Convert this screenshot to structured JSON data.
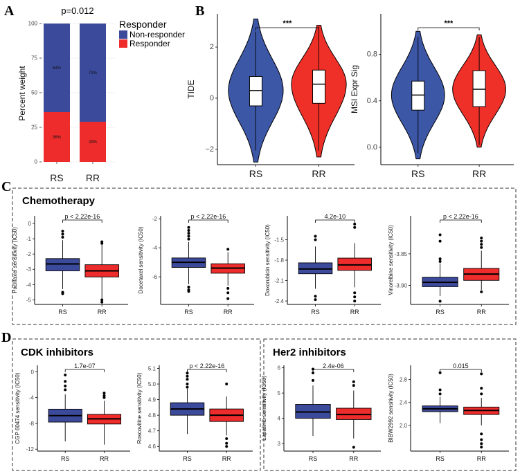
{
  "colors": {
    "blue": "#3c4a9c",
    "red": "#ee2c2c",
    "violin_blue": "#3d57a7",
    "violin_red": "#ee3028"
  },
  "panel_A": {
    "letter": "A",
    "pvalue": "p=0.012",
    "ylabel": "Percent weight",
    "legend": {
      "title": "Responder",
      "items": [
        "Non-responder",
        "Responder"
      ]
    },
    "chart_data": {
      "type": "bar",
      "stacked": true,
      "title": "p=0.012",
      "xlabel": "",
      "ylabel": "Percent weight",
      "categories": [
        "RS",
        "RR"
      ],
      "series": [
        {
          "name": "Non-responder",
          "values": [
            64,
            71
          ],
          "labels": [
            "64%",
            "71%"
          ]
        },
        {
          "name": "Responder",
          "values": [
            36,
            29
          ],
          "labels": [
            "36%",
            "29%"
          ]
        }
      ],
      "ylim": [
        0,
        100
      ],
      "yticks": [
        "0",
        "25",
        "50",
        "75",
        "100"
      ]
    }
  },
  "panel_B": {
    "letter": "B",
    "charts": [
      {
        "type": "violin",
        "ylabel": "TIDE",
        "categories": [
          "RS",
          "RR"
        ],
        "annotation": "***",
        "ylim": [
          -2.6,
          3.3
        ],
        "yticks": [
          2,
          0,
          -2
        ],
        "yticklabels": [
          "2",
          "0",
          "−2"
        ],
        "box": [
          {
            "q1": -0.3,
            "median": 0.3,
            "q3": 0.85,
            "whisker_low": -2.05,
            "whisker_high": 2.6
          },
          {
            "q1": -0.2,
            "median": 0.55,
            "q3": 1.1,
            "whisker_low": -2.05,
            "whisker_high": 2.8
          }
        ],
        "violin_range": [
          [
            -2.5,
            3.1
          ],
          [
            -2.3,
            2.85
          ]
        ]
      },
      {
        "type": "violin",
        "ylabel": "MSI Expr Sig",
        "categories": [
          "RS",
          "RR"
        ],
        "annotation": "***",
        "ylim": [
          -0.15,
          1.15
        ],
        "yticks": [
          0.8,
          0.4,
          0.0
        ],
        "yticklabels": [
          "0.8",
          "0.4",
          "0.0"
        ],
        "box": [
          {
            "q1": 0.32,
            "median": 0.45,
            "q3": 0.57,
            "whisker_low": -0.05,
            "whisker_high": 0.95
          },
          {
            "q1": 0.35,
            "median": 0.5,
            "q3": 0.66,
            "whisker_low": 0.02,
            "whisker_high": 0.95
          }
        ],
        "violin_range": [
          [
            -0.1,
            1.0
          ],
          [
            0.0,
            0.97
          ]
        ]
      }
    ]
  },
  "panel_C": {
    "letter": "C",
    "title": "Chemotherapy",
    "charts": [
      {
        "type": "box",
        "ylabel": "Paclitaxel sensitivity (IC50)",
        "categories": [
          "RS",
          "RR"
        ],
        "annotation": "p < 2.22e-16",
        "ylim": [
          -5.3,
          0.5
        ],
        "yticks": [
          0,
          -1,
          -2,
          -3,
          -4,
          -5
        ],
        "yticklabels": [
          "0",
          "-1",
          "-2",
          "-3",
          "-4",
          "-5"
        ],
        "box": [
          {
            "q1": -3.1,
            "median": -2.65,
            "q3": -2.3,
            "whisker_low": -4.3,
            "whisker_high": -1.1
          },
          {
            "q1": -3.5,
            "median": -3.1,
            "q3": -2.7,
            "whisker_low": -4.9,
            "whisker_high": -1.4
          }
        ],
        "outliers": [
          [
            -0.5,
            -0.7,
            -0.9,
            -4.5,
            -4.6
          ],
          [
            -1.2,
            -1.3,
            -5.0,
            -5.15
          ]
        ]
      },
      {
        "type": "box",
        "ylabel": "Docetaxel sensitivity (IC50)",
        "categories": [
          "RS",
          "RR"
        ],
        "annotation": "p < 2.22e-16",
        "ylim": [
          -7.9,
          -1.8
        ],
        "yticks": [
          -2,
          -4,
          -6
        ],
        "yticklabels": [
          "-2",
          "-4",
          "-6"
        ],
        "box": [
          {
            "q1": -5.35,
            "median": -5.0,
            "q3": -4.7,
            "whisker_low": -6.5,
            "whisker_high": -3.6
          },
          {
            "q1": -5.75,
            "median": -5.4,
            "q3": -5.1,
            "whisker_low": -6.6,
            "whisker_high": -4.3
          }
        ],
        "outliers": [
          [
            -2.6,
            -2.8,
            -3.0,
            -3.2,
            -3.4,
            -6.7,
            -6.9,
            -7.0
          ],
          [
            -4.1,
            -6.8,
            -7.1,
            -7.5
          ]
        ]
      },
      {
        "type": "box",
        "ylabel": "Doxorubicin sensitivity (IC50)",
        "categories": [
          "RS",
          "RR"
        ],
        "annotation": "4.2e-10",
        "ylim": [
          -2.45,
          -1.15
        ],
        "yticks": [
          -1.5,
          -1.8,
          -2.1,
          -2.4
        ],
        "yticklabels": [
          "-1.5",
          "-1.8",
          "-2.1",
          "-2.4"
        ],
        "box": [
          {
            "q1": -2.0,
            "median": -1.93,
            "q3": -1.84,
            "whisker_low": -2.22,
            "whisker_high": -1.6
          },
          {
            "q1": -1.95,
            "median": -1.87,
            "q3": -1.77,
            "whisker_low": -2.2,
            "whisker_high": -1.55
          }
        ],
        "outliers": [
          [
            -1.45,
            -1.5,
            -2.33,
            -2.38
          ],
          [
            -1.27,
            -1.32,
            -2.28,
            -2.34,
            -2.4
          ]
        ]
      },
      {
        "type": "box",
        "ylabel": "Vinorelbine sensitivity (IC50)",
        "categories": [
          "RS",
          "RR"
        ],
        "annotation": "p < 2.22e-16",
        "ylim": [
          -3.93,
          -3.79
        ],
        "yticks": [
          -3.85,
          -3.9
        ],
        "yticklabels": [
          "-3.85",
          "-3.90"
        ],
        "box": [
          {
            "q1": -3.902,
            "median": -3.895,
            "q3": -3.887,
            "whisker_low": -3.917,
            "whisker_high": -3.865
          },
          {
            "q1": -3.892,
            "median": -3.882,
            "q3": -3.873,
            "whisker_low": -3.907,
            "whisker_high": -3.845
          }
        ],
        "outliers": [
          [
            -3.82,
            -3.83,
            -3.858,
            -3.862,
            -3.925
          ],
          [
            -3.825,
            -3.83,
            -3.835,
            -3.84,
            -3.91
          ]
        ]
      }
    ]
  },
  "panel_D": {
    "letter": "D",
    "group_titles": [
      "CDK inhibitors",
      "Her2 inhibitors"
    ],
    "charts": [
      {
        "type": "box",
        "ylabel": "CGP 60474 sensitivity (IC50)",
        "categories": [
          "RS",
          "RR"
        ],
        "annotation": "1.7e-07",
        "ylim": [
          -12.3,
          1.0
        ],
        "yticks": [
          0,
          -4,
          -8,
          -12
        ],
        "yticklabels": [
          "0",
          "-4",
          "-8",
          "-12"
        ],
        "box": [
          {
            "q1": -7.8,
            "median": -6.8,
            "q3": -5.8,
            "whisker_low": -10.8,
            "whisker_high": -3.5
          },
          {
            "q1": -8.1,
            "median": -7.3,
            "q3": -6.6,
            "whisker_low": -11.3,
            "whisker_high": -4.5
          }
        ],
        "outliers": [
          [
            -0.5,
            -1.5,
            -2.2,
            -2.8
          ],
          [
            -3.3,
            -3.7,
            -4.0
          ]
        ]
      },
      {
        "type": "box",
        "ylabel": "Roscovitine sensitivity (IC50)",
        "categories": [
          "RS",
          "RR"
        ],
        "annotation": "p < 2.22e-16",
        "ylim": [
          4.57,
          5.12
        ],
        "yticks": [
          5.1,
          5.0,
          4.9,
          4.8,
          4.7,
          4.6
        ],
        "yticklabels": [
          "5.1",
          "5.0",
          "4.9",
          "4.8",
          "4.7",
          "4.6"
        ],
        "box": [
          {
            "q1": 4.8,
            "median": 4.84,
            "q3": 4.88,
            "whisker_low": 4.68,
            "whisker_high": 4.97
          },
          {
            "q1": 4.76,
            "median": 4.8,
            "q3": 4.84,
            "whisker_low": 4.67,
            "whisker_high": 4.92
          }
        ],
        "outliers": [
          [
            4.98,
            5.0,
            5.03,
            5.05,
            5.07
          ],
          [
            4.65,
            4.62,
            4.6,
            5.0
          ]
        ]
      },
      {
        "type": "box",
        "ylabel": "Lapatinib sensitivity (IC50)",
        "categories": [
          "RS",
          "RR"
        ],
        "annotation": "2.4e-06",
        "ylim": [
          2.7,
          6.1
        ],
        "yticks": [
          6,
          5,
          4,
          3
        ],
        "yticklabels": [
          "6",
          "5",
          "4",
          "3"
        ],
        "box": [
          {
            "q1": 4.0,
            "median": 4.25,
            "q3": 4.55,
            "whisker_low": 3.3,
            "whisker_high": 5.3
          },
          {
            "q1": 3.95,
            "median": 4.15,
            "q3": 4.4,
            "whisker_low": 3.2,
            "whisker_high": 5.1
          }
        ],
        "outliers": [
          [
            5.5,
            5.8,
            5.95
          ],
          [
            5.3,
            5.45,
            2.85
          ]
        ]
      },
      {
        "type": "box",
        "ylabel": "BIBW2992 sensitivity (IC50)",
        "categories": [
          "RS",
          "RR"
        ],
        "annotation": "0.015",
        "ylim": [
          1.55,
          3.05
        ],
        "yticks": [
          2.8,
          2.4,
          2.0
        ],
        "yticklabels": [
          "2.8",
          "2.4",
          "2.0"
        ],
        "box": [
          {
            "q1": 2.24,
            "median": 2.29,
            "q3": 2.34,
            "whisker_low": 2.04,
            "whisker_high": 2.5
          },
          {
            "q1": 2.19,
            "median": 2.26,
            "q3": 2.32,
            "whisker_low": 2.0,
            "whisker_high": 2.48
          }
        ],
        "outliers": [
          [
            2.55,
            2.62,
            2.92
          ],
          [
            2.55,
            2.65,
            2.9,
            1.85,
            1.75,
            1.68,
            1.62
          ]
        ]
      }
    ]
  }
}
